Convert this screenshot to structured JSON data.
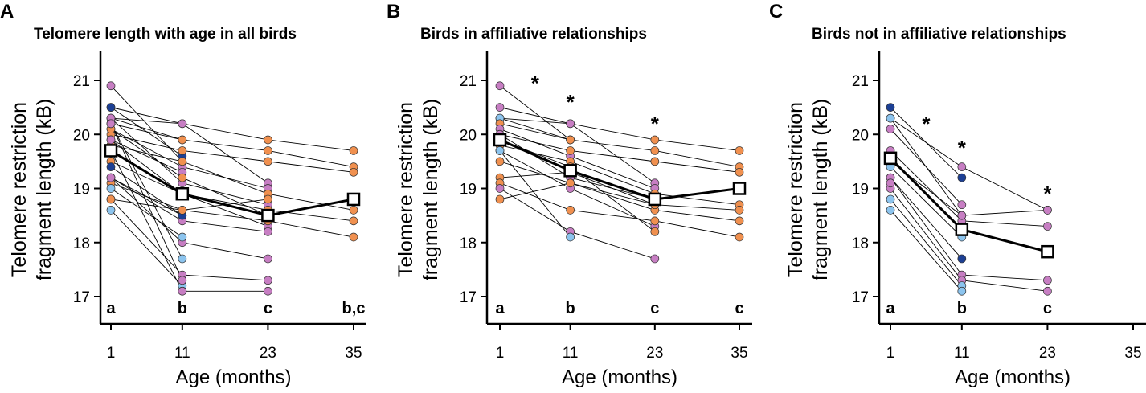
{
  "colors": {
    "orange": "#f0904f",
    "purple": "#c77ec3",
    "light_blue": "#8cc4ee",
    "dark_blue": "#1c3f94",
    "line": "#000000",
    "mean_fill": "#ffffff"
  },
  "chart_data": [
    {
      "type": "line",
      "panel": "A",
      "title": "Telomere length with age in all birds",
      "xlabel": "Age (months)",
      "ylabel": [
        "Telomere restriction",
        "fragment length (kB)"
      ],
      "x_ticks": [
        1,
        11,
        23,
        35
      ],
      "x_tick_labels": [
        "1",
        "11",
        "23",
        "35"
      ],
      "y_ticks": [
        17,
        18,
        19,
        20,
        21
      ],
      "y_tick_labels": [
        "17",
        "18",
        "19",
        "20",
        "21"
      ],
      "xlim": [
        -1,
        37
      ],
      "ylim": [
        16.55,
        21.5
      ],
      "mean_series": {
        "x": [
          1,
          11,
          23,
          35
        ],
        "values": [
          19.7,
          18.9,
          18.5,
          18.8
        ]
      },
      "significance_letters": [
        "a",
        "b",
        "c",
        "b,c"
      ],
      "stars": [],
      "birds": [
        {
          "color": "purple",
          "x": [
            1,
            11
          ],
          "values": [
            20.9,
            19.5
          ]
        },
        {
          "color": "orange",
          "x": [
            1,
            11,
            23,
            35
          ],
          "values": [
            20.3,
            20.2,
            19.9,
            19.7
          ]
        },
        {
          "color": "purple",
          "x": [
            1,
            11,
            23
          ],
          "values": [
            20.5,
            20.2,
            19.1
          ]
        },
        {
          "color": "light_blue",
          "x": [
            1,
            11
          ],
          "values": [
            20.3,
            19.9
          ]
        },
        {
          "color": "dark_blue",
          "x": [
            1,
            11
          ],
          "values": [
            20.5,
            19.6
          ]
        },
        {
          "color": "orange",
          "x": [
            1,
            11,
            23,
            35
          ],
          "values": [
            20.2,
            19.9,
            19.7,
            19.4
          ]
        },
        {
          "color": "purple",
          "x": [
            1,
            11,
            23
          ],
          "values": [
            20.1,
            19.4,
            19.0
          ]
        },
        {
          "color": "orange",
          "x": [
            1,
            11,
            23,
            35
          ],
          "values": [
            20.0,
            19.7,
            19.5,
            19.3
          ]
        },
        {
          "color": "purple",
          "x": [
            1,
            11
          ],
          "values": [
            19.9,
            19.3
          ]
        },
        {
          "color": "orange",
          "x": [
            1,
            11,
            23,
            35
          ],
          "values": [
            19.8,
            19.5,
            18.9,
            18.6
          ]
        },
        {
          "color": "purple",
          "x": [
            1,
            11,
            23
          ],
          "values": [
            20.3,
            19.1,
            18.7
          ]
        },
        {
          "color": "orange",
          "x": [
            1,
            11,
            23
          ],
          "values": [
            20.1,
            19.2,
            18.5
          ]
        },
        {
          "color": "purple",
          "x": [
            1,
            11,
            23
          ],
          "values": [
            19.9,
            18.9,
            18.3
          ]
        },
        {
          "color": "orange",
          "x": [
            1,
            11,
            23,
            35
          ],
          "values": [
            19.5,
            18.9,
            18.6,
            18.4
          ]
        },
        {
          "color": "dark_blue",
          "x": [
            1,
            11
          ],
          "values": [
            19.4,
            18.5
          ]
        },
        {
          "color": "purple",
          "x": [
            1,
            11,
            23
          ],
          "values": [
            19.2,
            18.4,
            18.2
          ]
        },
        {
          "color": "dark_blue",
          "x": [
            1,
            11
          ],
          "values": [
            19.2,
            18.5
          ]
        },
        {
          "color": "orange",
          "x": [
            1,
            11,
            23,
            35
          ],
          "values": [
            19.1,
            18.6,
            18.4,
            18.1
          ]
        },
        {
          "color": "purple",
          "x": [
            1,
            11,
            23
          ],
          "values": [
            19.2,
            18.0,
            17.7
          ]
        },
        {
          "color": "light_blue",
          "x": [
            1,
            11
          ],
          "values": [
            19.0,
            18.1
          ]
        },
        {
          "color": "purple",
          "x": [
            1,
            11,
            23
          ],
          "values": [
            18.8,
            17.4,
            17.3
          ]
        },
        {
          "color": "orange",
          "x": [
            1,
            11,
            23
          ],
          "values": [
            18.8,
            18.6,
            18.8
          ]
        },
        {
          "color": "light_blue",
          "x": [
            1,
            11
          ],
          "values": [
            18.6,
            17.2
          ]
        },
        {
          "color": "light_blue",
          "x": [
            1,
            11
          ],
          "values": [
            20.2,
            17.7
          ]
        },
        {
          "color": "purple",
          "x": [
            1,
            11
          ],
          "values": [
            20.2,
            17.3
          ]
        },
        {
          "color": "light_blue",
          "x": [
            1,
            11
          ],
          "values": [
            19.7,
            17.1
          ]
        },
        {
          "color": "purple",
          "x": [
            11,
            23
          ],
          "values": [
            17.1,
            17.1
          ]
        }
      ]
    },
    {
      "type": "line",
      "panel": "B",
      "title": "Birds in affiliative relationships",
      "xlabel": "Age (months)",
      "ylabel": [
        "Telomere restriction",
        "fragment length (kB)"
      ],
      "x_ticks": [
        1,
        11,
        23,
        35
      ],
      "x_tick_labels": [
        "1",
        "11",
        "23",
        "35"
      ],
      "y_ticks": [
        17,
        18,
        19,
        20,
        21
      ],
      "y_tick_labels": [
        "17",
        "18",
        "19",
        "20",
        "21"
      ],
      "xlim": [
        -1,
        37
      ],
      "ylim": [
        16.55,
        21.5
      ],
      "mean_series": {
        "x": [
          1,
          11,
          23,
          35
        ],
        "values": [
          19.9,
          19.33,
          18.8,
          19.0
        ]
      },
      "significance_letters": [
        "a",
        "b",
        "c",
        "c"
      ],
      "stars": [
        {
          "x": 6,
          "y": 20.95
        },
        {
          "x": 11,
          "y": 20.6
        },
        {
          "x": 23,
          "y": 20.2
        }
      ],
      "birds": [
        {
          "color": "purple",
          "x": [
            1,
            11
          ],
          "values": [
            20.9,
            19.9
          ]
        },
        {
          "color": "orange",
          "x": [
            1,
            11,
            23,
            35
          ],
          "values": [
            20.3,
            20.2,
            19.9,
            19.7
          ]
        },
        {
          "color": "purple",
          "x": [
            1,
            11,
            23
          ],
          "values": [
            20.5,
            20.2,
            19.1
          ]
        },
        {
          "color": "light_blue",
          "x": [
            1,
            11
          ],
          "values": [
            20.3,
            19.9
          ]
        },
        {
          "color": "orange",
          "x": [
            1,
            11,
            23,
            35
          ],
          "values": [
            20.2,
            19.9,
            19.7,
            19.4
          ]
        },
        {
          "color": "purple",
          "x": [
            1,
            11,
            23
          ],
          "values": [
            20.1,
            19.6,
            19.0
          ]
        },
        {
          "color": "orange",
          "x": [
            1,
            11,
            23,
            35
          ],
          "values": [
            20.0,
            19.7,
            19.5,
            19.3
          ]
        },
        {
          "color": "orange",
          "x": [
            1,
            11,
            23,
            35
          ],
          "values": [
            19.8,
            19.5,
            18.9,
            18.7
          ]
        },
        {
          "color": "purple",
          "x": [
            1,
            11,
            23
          ],
          "values": [
            20.0,
            19.2,
            18.8
          ]
        },
        {
          "color": "orange",
          "x": [
            1,
            11,
            23,
            35
          ],
          "values": [
            19.5,
            19.1,
            18.6,
            18.4
          ]
        },
        {
          "color": "orange",
          "x": [
            1,
            11,
            23
          ],
          "values": [
            19.2,
            19.3,
            18.7
          ]
        },
        {
          "color": "purple",
          "x": [
            1,
            11,
            23
          ],
          "values": [
            19.7,
            19.0,
            18.3
          ]
        },
        {
          "color": "orange",
          "x": [
            1,
            11,
            23,
            35
          ],
          "values": [
            19.1,
            18.6,
            18.4,
            18.1
          ]
        },
        {
          "color": "purple",
          "x": [
            1,
            11,
            23
          ],
          "values": [
            19.0,
            18.2,
            17.7
          ]
        },
        {
          "color": "orange",
          "x": [
            1,
            11,
            23,
            35
          ],
          "values": [
            18.8,
            19.1,
            18.7,
            18.6
          ]
        },
        {
          "color": "light_blue",
          "x": [
            1,
            11
          ],
          "values": [
            19.7,
            18.1
          ]
        },
        {
          "color": "orange",
          "x": [
            1,
            11,
            23
          ],
          "values": [
            19.9,
            19.4,
            18.2
          ]
        }
      ]
    },
    {
      "type": "line",
      "panel": "C",
      "title": "Birds not in affiliative relationships",
      "xlabel": "Age (months)",
      "ylabel": [
        "Telomere restriction",
        "fragment length (kB)"
      ],
      "x_ticks": [
        1,
        11,
        23,
        35
      ],
      "x_tick_labels": [
        "1",
        "11",
        "23",
        "35"
      ],
      "y_ticks": [
        17,
        18,
        19,
        20,
        21
      ],
      "y_tick_labels": [
        "17",
        "18",
        "19",
        "20",
        "21"
      ],
      "xlim": [
        -1,
        37
      ],
      "ylim": [
        16.55,
        21.5
      ],
      "mean_series": {
        "x": [
          1,
          11,
          23
        ],
        "values": [
          19.56,
          18.24,
          17.83
        ]
      },
      "significance_letters": [
        "a",
        "b",
        "c",
        ""
      ],
      "stars": [
        {
          "x": 6,
          "y": 20.2
        },
        {
          "x": 11,
          "y": 19.75
        },
        {
          "x": 23,
          "y": 18.9
        }
      ],
      "birds": [
        {
          "color": "purple",
          "x": [
            1,
            11,
            23
          ],
          "values": [
            20.3,
            19.4,
            18.6
          ]
        },
        {
          "color": "dark_blue",
          "x": [
            1,
            11
          ],
          "values": [
            20.5,
            19.2
          ]
        },
        {
          "color": "purple",
          "x": [
            1,
            11
          ],
          "values": [
            20.1,
            18.7
          ]
        },
        {
          "color": "light_blue",
          "x": [
            1,
            11
          ],
          "values": [
            20.3,
            18.5
          ]
        },
        {
          "color": "purple",
          "x": [
            1,
            11,
            23
          ],
          "values": [
            19.7,
            18.4,
            18.3
          ]
        },
        {
          "color": "purple",
          "x": [
            1,
            11,
            23
          ],
          "values": [
            19.5,
            18.5,
            18.6
          ]
        },
        {
          "color": "light_blue",
          "x": [
            1,
            11
          ],
          "values": [
            19.4,
            18.1
          ]
        },
        {
          "color": "dark_blue",
          "x": [
            1,
            11
          ],
          "values": [
            19.2,
            17.7
          ]
        },
        {
          "color": "purple",
          "x": [
            1,
            11,
            23
          ],
          "values": [
            19.2,
            17.4,
            17.3
          ]
        },
        {
          "color": "purple",
          "x": [
            1,
            11,
            23
          ],
          "values": [
            19.0,
            17.3,
            17.1
          ]
        },
        {
          "color": "light_blue",
          "x": [
            1,
            11
          ],
          "values": [
            18.8,
            17.2
          ]
        },
        {
          "color": "light_blue",
          "x": [
            1,
            11
          ],
          "values": [
            18.6,
            17.1
          ]
        },
        {
          "color": "purple",
          "x": [
            1
          ],
          "values": [
            19.1
          ]
        }
      ]
    }
  ]
}
